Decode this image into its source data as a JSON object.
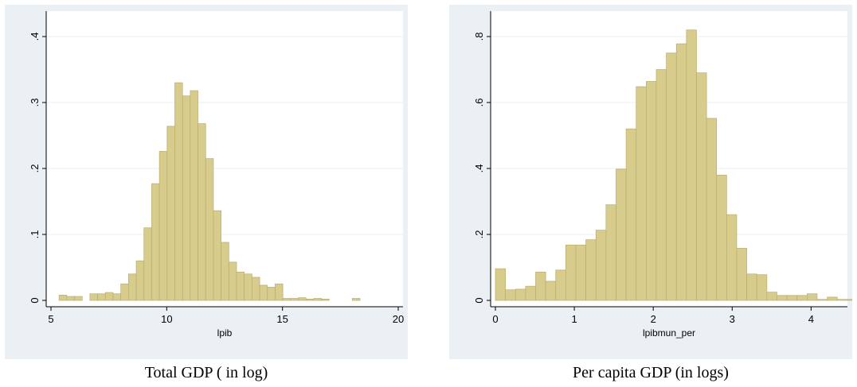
{
  "chart_data": [
    {
      "type": "bar",
      "caption": "Total GDP ( in log)",
      "xlabel": "lpib",
      "ylabel": "",
      "xlim": [
        5,
        20
      ],
      "ylim": [
        0,
        0.4
      ],
      "xticks": [
        5,
        10,
        15,
        20
      ],
      "xtick_labels": [
        "5",
        "10",
        "15",
        "20"
      ],
      "yticks": [
        0,
        0.1,
        0.2,
        0.3,
        0.4
      ],
      "ytick_labels": [
        "0",
        ".1",
        ".2",
        ".3",
        ".4"
      ],
      "grid": true,
      "bin_width": 0.3333,
      "bin_start": 5.35,
      "values": [
        0.008,
        0.006,
        0.006,
        0,
        0.01,
        0.01,
        0.012,
        0.01,
        0.025,
        0.04,
        0.06,
        0.11,
        0.177,
        0.226,
        0.264,
        0.33,
        0.31,
        0.318,
        0.268,
        0.215,
        0.136,
        0.088,
        0.058,
        0.043,
        0.04,
        0.035,
        0.023,
        0.02,
        0.025,
        0.003,
        0.003,
        0.004,
        0.002,
        0.003,
        0.002,
        0,
        0,
        0,
        0.003
      ]
    },
    {
      "type": "bar",
      "caption": "Per capita GDP (in logs)",
      "xlabel": "lpibmun_per",
      "ylabel": "",
      "xlim": [
        0,
        4.4
      ],
      "ylim": [
        0,
        0.8
      ],
      "xticks": [
        0,
        1,
        2,
        3,
        4
      ],
      "xtick_labels": [
        "0",
        "1",
        "2",
        "3",
        "4"
      ],
      "yticks": [
        0,
        0.2,
        0.4,
        0.6,
        0.8
      ],
      "ytick_labels": [
        "0",
        ".2",
        ".4",
        ".6",
        ".8"
      ],
      "grid": true,
      "bin_width": 0.1274,
      "bin_start": 0,
      "values": [
        0.096,
        0.032,
        0.034,
        0.043,
        0.086,
        0.058,
        0.092,
        0.168,
        0.168,
        0.184,
        0.213,
        0.29,
        0.398,
        0.52,
        0.648,
        0.664,
        0.7,
        0.75,
        0.778,
        0.82,
        0.69,
        0.552,
        0.38,
        0.26,
        0.158,
        0.08,
        0.078,
        0.025,
        0.015,
        0.015,
        0.015,
        0.02,
        0.003,
        0.01,
        0.003,
        0.003
      ]
    }
  ]
}
